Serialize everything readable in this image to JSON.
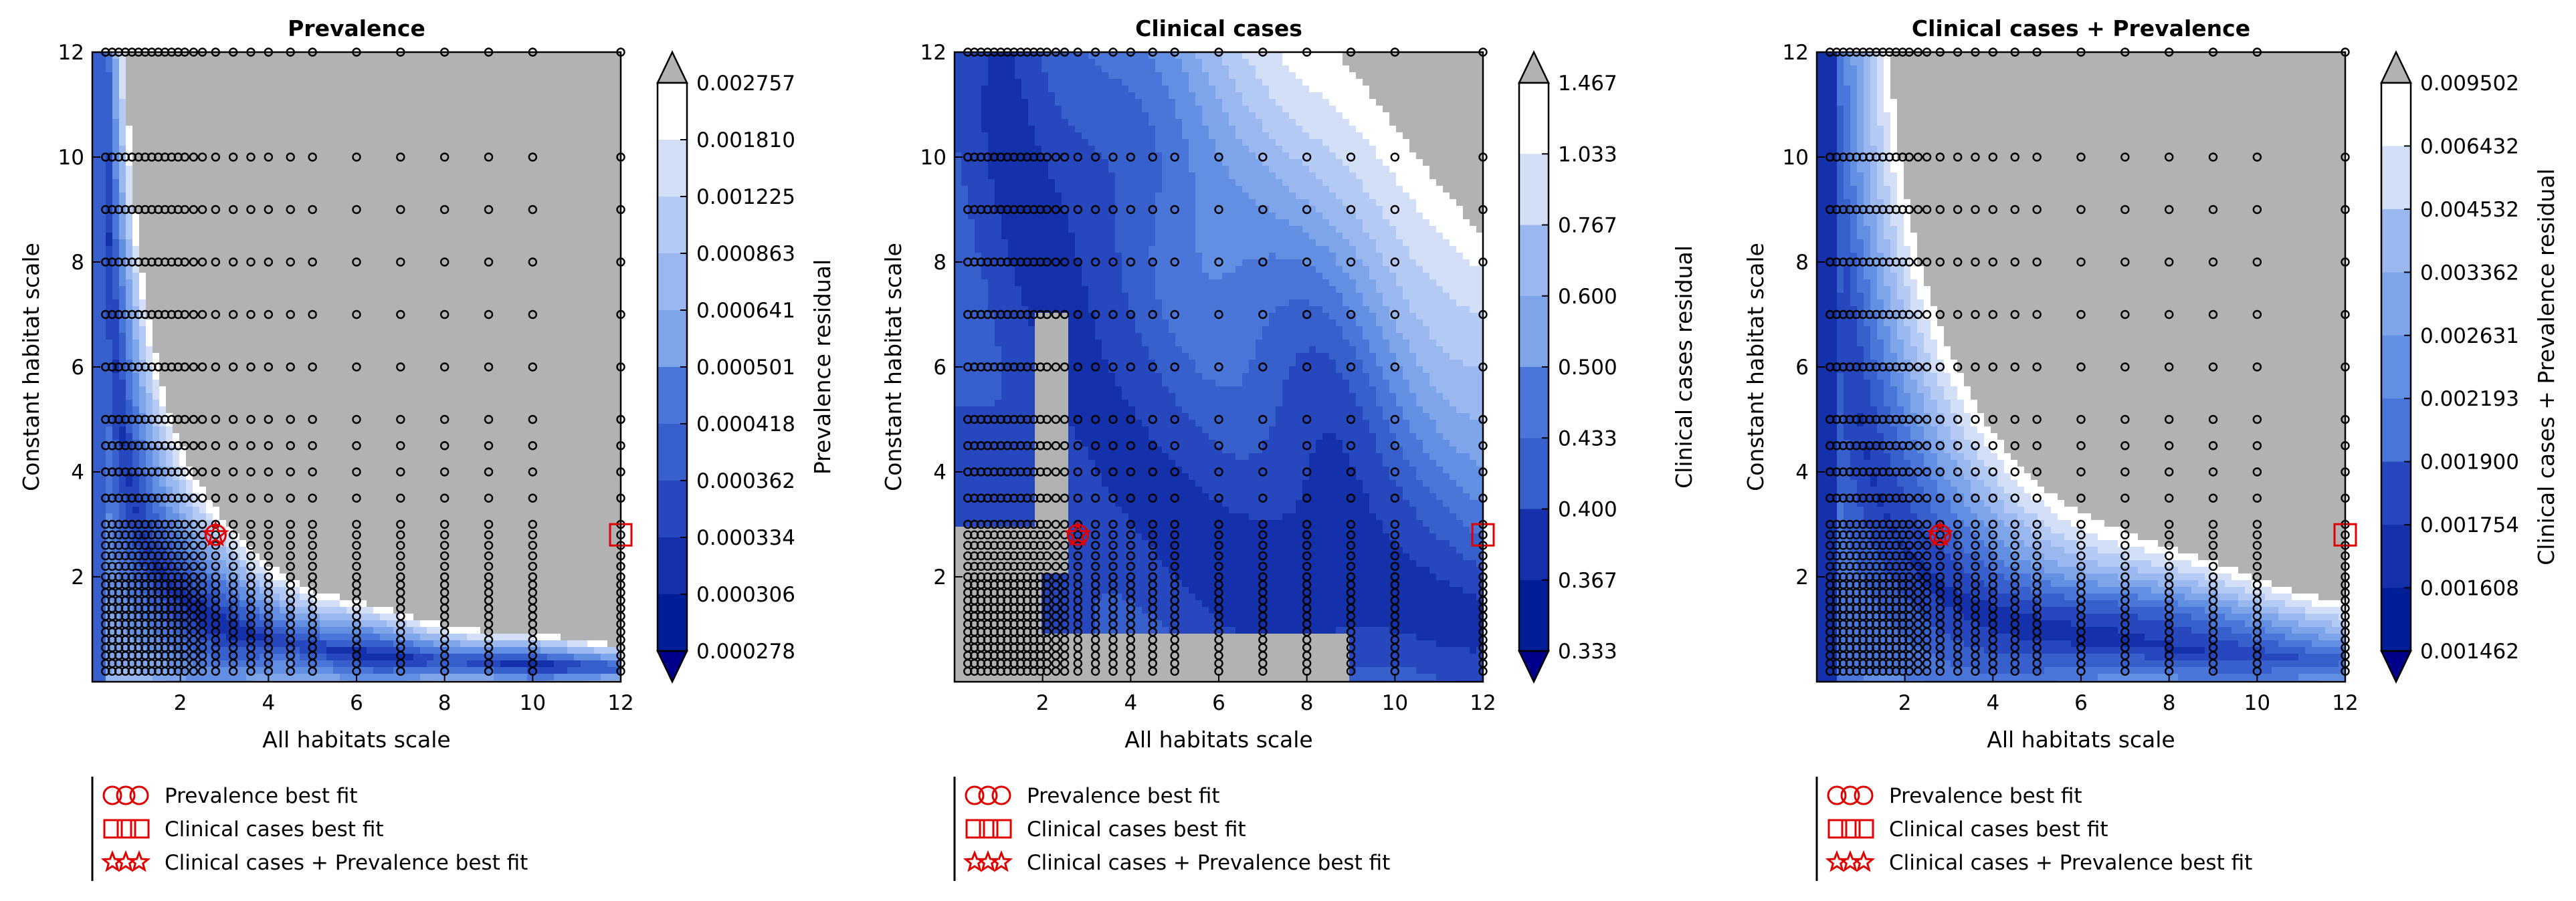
{
  "colors": {
    "grey": "#b2b2b2",
    "white": "#ffffff",
    "marker_red": "#e00000",
    "levels": [
      "#ffffff",
      "#d2dff7",
      "#b3cbf4",
      "#9ab8ef",
      "#7ea4ea",
      "#628fe2",
      "#4a76da",
      "#3860cc",
      "#2647bd",
      "#1430aa",
      "#001e96"
    ]
  },
  "legend": {
    "items": [
      {
        "marker": "circle",
        "label": "Prevalence best fit"
      },
      {
        "marker": "square",
        "label": "Clinical cases best fit"
      },
      {
        "marker": "star",
        "label": "Clinical cases + Prevalence best fit"
      }
    ]
  },
  "chart_data": [
    {
      "type": "heatmap",
      "title": "Prevalence",
      "xlabel": "All habitats scale",
      "ylabel": "Constant habitat scale",
      "xlim": [
        0,
        12
      ],
      "ylim": [
        0,
        12
      ],
      "xticks": [
        "2",
        "4",
        "6",
        "8",
        "10",
        "12"
      ],
      "yticks": [
        "2",
        "4",
        "6",
        "8",
        "10",
        "12"
      ],
      "colorbar_label": "Prevalence residual",
      "colorbar_ticks": [
        "0.002757",
        "0.001810",
        "0.001225",
        "0.000863",
        "0.000641",
        "0.000501",
        "0.000418",
        "0.000362",
        "0.000334",
        "0.000306",
        "0.000278"
      ],
      "best_fits": {
        "prevalence": {
          "x": 2.8,
          "y": 2.8
        },
        "clinical_cases": {
          "x": 12,
          "y": 2.8
        },
        "combined": {
          "x": 2.8,
          "y": 2.8
        }
      }
    },
    {
      "type": "heatmap",
      "title": "Clinical cases",
      "xlabel": "All habitats scale",
      "ylabel": "Constant habitat scale",
      "xlim": [
        0,
        12
      ],
      "ylim": [
        0,
        12
      ],
      "xticks": [
        "2",
        "4",
        "6",
        "8",
        "10",
        "12"
      ],
      "yticks": [
        "2",
        "4",
        "6",
        "8",
        "10",
        "12"
      ],
      "colorbar_label": "Clinical cases residual",
      "colorbar_ticks": [
        "1.467",
        "1.033",
        "0.767",
        "0.600",
        "0.500",
        "0.433",
        "0.400",
        "0.367",
        "0.333"
      ],
      "best_fits": {
        "prevalence": {
          "x": 2.8,
          "y": 2.8
        },
        "clinical_cases": {
          "x": 12,
          "y": 2.8
        },
        "combined": {
          "x": 2.8,
          "y": 2.8
        }
      }
    },
    {
      "type": "heatmap",
      "title": "Clinical cases + Prevalence",
      "xlabel": "All habitats scale",
      "ylabel": "Constant habitat scale",
      "xlim": [
        0,
        12
      ],
      "ylim": [
        0,
        12
      ],
      "xticks": [
        "2",
        "4",
        "6",
        "8",
        "10",
        "12"
      ],
      "yticks": [
        "2",
        "4",
        "6",
        "8",
        "10",
        "12"
      ],
      "colorbar_label": "Clinical cases + Prevalence residual",
      "colorbar_ticks": [
        "0.009502",
        "0.006432",
        "0.004532",
        "0.003362",
        "0.002631",
        "0.002193",
        "0.001900",
        "0.001754",
        "0.001608",
        "0.001462"
      ],
      "best_fits": {
        "prevalence": {
          "x": 2.8,
          "y": 2.8
        },
        "clinical_cases": {
          "x": 12,
          "y": 2.8
        },
        "combined": {
          "x": 2.8,
          "y": 2.8
        }
      }
    }
  ]
}
